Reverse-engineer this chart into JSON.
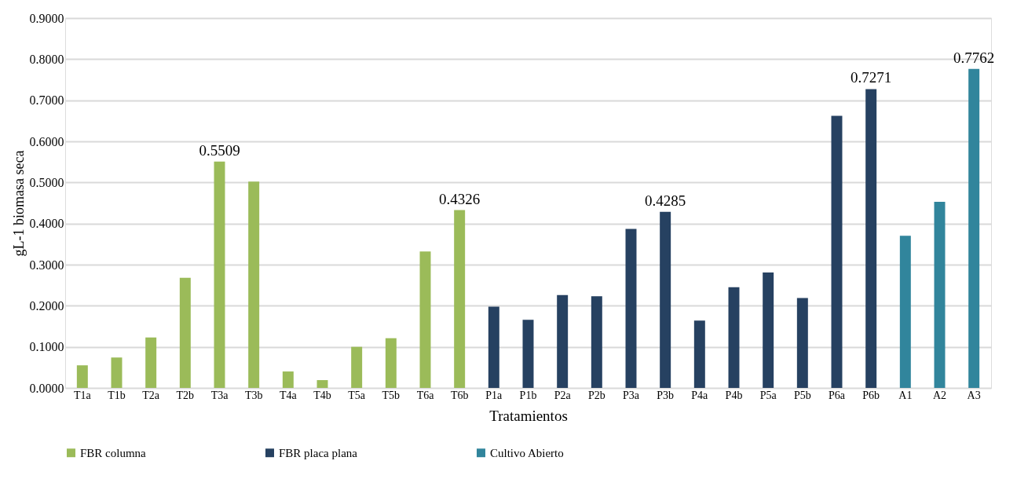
{
  "chart_data": {
    "type": "bar",
    "xlabel": "Tratamientos",
    "ylabel": "gL-1 biomasa seca",
    "categories": [
      "T1a",
      "T1b",
      "T2a",
      "T2b",
      "T3a",
      "T3b",
      "T4a",
      "T4b",
      "T5a",
      "T5b",
      "T6a",
      "T6b",
      "P1a",
      "P1b",
      "P2a",
      "P2b",
      "P3a",
      "P3b",
      "P4a",
      "P4b",
      "P5a",
      "P5b",
      "P6a",
      "P6b",
      "A1",
      "A2",
      "A3"
    ],
    "series": [
      {
        "name": "FBR columna",
        "color": "#9bbb59",
        "values": [
          0.055,
          0.074,
          0.123,
          0.268,
          0.5509,
          0.502,
          0.04,
          0.019,
          0.1,
          0.121,
          0.332,
          0.4326,
          null,
          null,
          null,
          null,
          null,
          null,
          null,
          null,
          null,
          null,
          null,
          null,
          null,
          null,
          null
        ],
        "value_labels": [
          null,
          null,
          null,
          null,
          "0.5509",
          null,
          null,
          null,
          null,
          null,
          null,
          "0.4326",
          null,
          null,
          null,
          null,
          null,
          null,
          null,
          null,
          null,
          null,
          null,
          null,
          null,
          null,
          null
        ]
      },
      {
        "name": "FBR placa plana",
        "color": "#264161",
        "values": [
          null,
          null,
          null,
          null,
          null,
          null,
          null,
          null,
          null,
          null,
          null,
          null,
          0.198,
          0.166,
          0.226,
          0.223,
          0.387,
          0.4285,
          0.164,
          0.245,
          0.281,
          0.219,
          0.662,
          0.7271,
          null,
          null,
          null
        ],
        "value_labels": [
          null,
          null,
          null,
          null,
          null,
          null,
          null,
          null,
          null,
          null,
          null,
          null,
          null,
          null,
          null,
          null,
          null,
          "0.4285",
          null,
          null,
          null,
          null,
          null,
          "0.7271",
          null,
          null,
          null
        ]
      },
      {
        "name": "Cultivo Abierto",
        "color": "#31859c",
        "values": [
          null,
          null,
          null,
          null,
          null,
          null,
          null,
          null,
          null,
          null,
          null,
          null,
          null,
          null,
          null,
          null,
          null,
          null,
          null,
          null,
          null,
          null,
          null,
          null,
          0.37,
          0.453,
          0.7762
        ],
        "value_labels": [
          null,
          null,
          null,
          null,
          null,
          null,
          null,
          null,
          null,
          null,
          null,
          null,
          null,
          null,
          null,
          null,
          null,
          null,
          null,
          null,
          null,
          null,
          null,
          null,
          null,
          null,
          "0.7762"
        ]
      }
    ],
    "ylim": [
      0,
      0.9
    ],
    "yticks": [
      {
        "value": 0,
        "label": "0.0000"
      },
      {
        "value": 0.1,
        "label": "0.1000"
      },
      {
        "value": 0.2,
        "label": "0.2000"
      },
      {
        "value": 0.3,
        "label": "0.3000"
      },
      {
        "value": 0.4,
        "label": "0.4000"
      },
      {
        "value": 0.5,
        "label": "0.5000"
      },
      {
        "value": 0.6,
        "label": "0.6000"
      },
      {
        "value": 0.7,
        "label": "0.7000"
      },
      {
        "value": 0.8,
        "label": "0.8000"
      },
      {
        "value": 0.9,
        "label": "0.9000"
      }
    ],
    "grid": "y",
    "legend": "bottom"
  }
}
